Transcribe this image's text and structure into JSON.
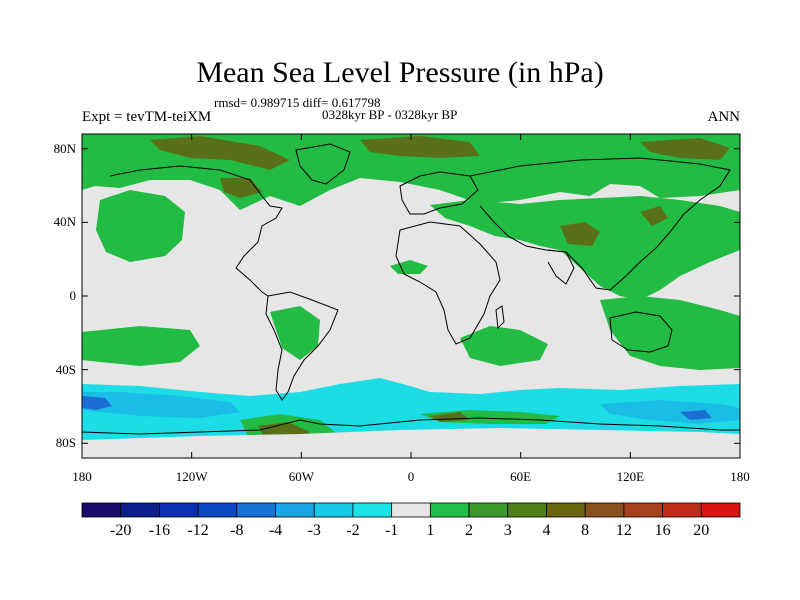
{
  "title": "Mean Sea Level Pressure (in hPa)",
  "stats_line": "rmsd= 0.989715 diff= 0.617798",
  "period_line": "0328kyr BP - 0328kyr BP",
  "expt_label": "Expt = tevTM-teiXM",
  "season_label": "ANN",
  "lat_ticks": [
    {
      "value": 80,
      "label": "80N"
    },
    {
      "value": 40,
      "label": "40N"
    },
    {
      "value": 0,
      "label": "0"
    },
    {
      "value": -40,
      "label": "40S"
    },
    {
      "value": -80,
      "label": "80S"
    }
  ],
  "lon_ticks": [
    {
      "value": -180,
      "label": "180"
    },
    {
      "value": -120,
      "label": "120W"
    },
    {
      "value": -60,
      "label": "60W"
    },
    {
      "value": 0,
      "label": "0"
    },
    {
      "value": 60,
      "label": "60E"
    },
    {
      "value": 120,
      "label": "120E"
    },
    {
      "value": 180,
      "label": "180"
    }
  ],
  "colorbar": {
    "colors": [
      "#1a0a6b",
      "#0a1f8c",
      "#0a2fb0",
      "#0b49c2",
      "#1572d6",
      "#1aa5e6",
      "#18c8e8",
      "#1ce3ea",
      "#e6e6e6",
      "#1fbf4a",
      "#3c9a2a",
      "#4f7d18",
      "#6b6510",
      "#87531a",
      "#a7411c",
      "#c22b19",
      "#d8150f"
    ],
    "labels": [
      "-20",
      "-16",
      "-12",
      "-8",
      "-4",
      "-3",
      "-2",
      "-1",
      "1",
      "2",
      "3",
      "4",
      "8",
      "12",
      "16",
      "20"
    ]
  },
  "field_colors": {
    "neutral": "#e6e6e6",
    "pos_light": "#22bb44",
    "pos_dark": "#5a7018",
    "neg_light": "#1cdde6",
    "neg_mid": "#19bde6",
    "neg_dark": "#1b6fd2"
  }
}
